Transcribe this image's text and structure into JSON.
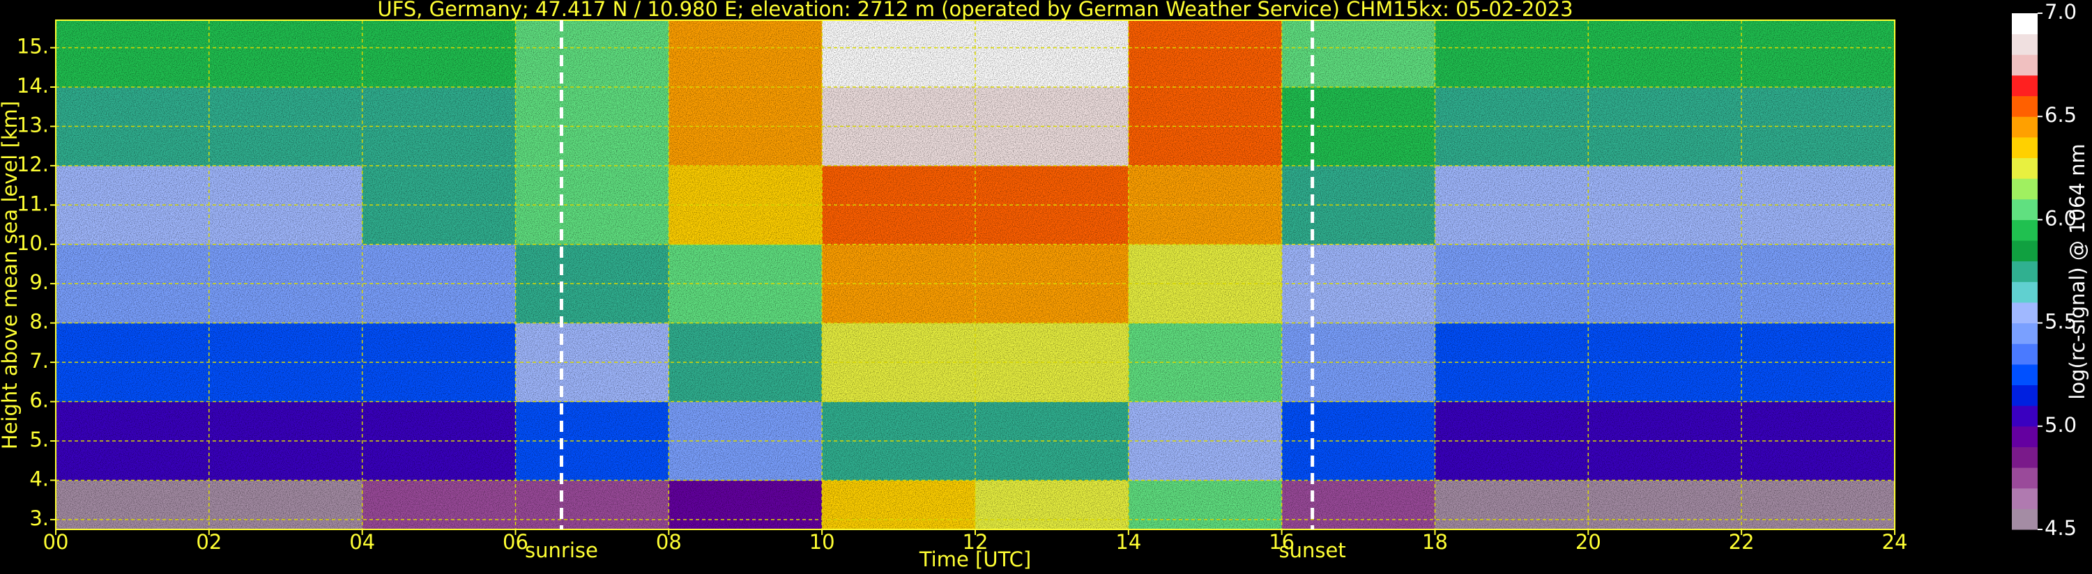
{
  "chart_data": {
    "type": "heatmap",
    "title": "UFS, Germany; 47.417 N / 10.980 E; elevation: 2712 m  (operated by German Weather Service)    CHM15kx: 05-02-2023",
    "x_label": "Time [UTC]",
    "y_label": "Height above mean sea level [km]",
    "colorbar_label": "log(rc-signal) @ 1064 nm",
    "xlim": [
      0,
      24
    ],
    "ylim": [
      2.75,
      15.7
    ],
    "xticks": [
      {
        "value": 0,
        "label": "00"
      },
      {
        "value": 2,
        "label": "02"
      },
      {
        "value": 4,
        "label": "04"
      },
      {
        "value": 6,
        "label": "06"
      },
      {
        "value": 8,
        "label": "08"
      },
      10,
      12,
      14,
      16,
      18,
      20,
      22,
      24
    ],
    "yticks": [
      {
        "value": 3,
        "label": "3."
      },
      {
        "value": 4,
        "label": "4."
      },
      {
        "value": 5,
        "label": "5."
      },
      {
        "value": 6,
        "label": "6."
      },
      {
        "value": 7,
        "label": "7."
      },
      {
        "value": 8,
        "label": "8."
      },
      {
        "value": 9,
        "label": "9."
      },
      {
        "value": 10,
        "label": "10."
      },
      {
        "value": 11,
        "label": "11."
      },
      {
        "value": 12,
        "label": "12."
      },
      {
        "value": 13,
        "label": "13."
      },
      {
        "value": 14,
        "label": "14."
      },
      {
        "value": 15,
        "label": "15."
      }
    ],
    "grid": true,
    "x_edges": [
      0,
      2,
      4,
      6,
      8,
      10,
      12,
      14,
      16,
      18,
      20,
      22,
      24
    ],
    "y_edges": [
      2.75,
      4,
      6,
      8,
      10,
      12,
      14,
      15.7
    ],
    "z": [
      [
        4.6,
        4.6,
        4.7,
        4.8,
        4.9,
        6.3,
        6.2,
        6.0,
        4.7,
        4.6,
        4.6,
        4.6
      ],
      [
        5.0,
        5.0,
        5.0,
        5.2,
        5.4,
        5.8,
        5.8,
        5.6,
        5.2,
        5.0,
        5.0,
        5.0
      ],
      [
        5.2,
        5.2,
        5.2,
        5.5,
        5.8,
        6.2,
        6.2,
        6.0,
        5.4,
        5.2,
        5.2,
        5.2
      ],
      [
        5.4,
        5.4,
        5.4,
        5.8,
        6.1,
        6.4,
        6.4,
        6.2,
        5.6,
        5.4,
        5.4,
        5.4
      ],
      [
        5.6,
        5.6,
        5.8,
        6.0,
        6.3,
        6.6,
        6.6,
        6.4,
        5.8,
        5.6,
        5.6,
        5.6
      ],
      [
        5.8,
        5.8,
        5.8,
        6.1,
        6.4,
        6.8,
        6.8,
        6.5,
        5.9,
        5.8,
        5.8,
        5.8
      ],
      [
        5.9,
        5.9,
        5.9,
        6.1,
        6.4,
        6.9,
        6.9,
        6.5,
        6.0,
        5.9,
        5.9,
        5.9
      ]
    ],
    "zlim": [
      4.5,
      7.0
    ],
    "zticks": [
      4.5,
      {
        "value": 5,
        "label": "5.0"
      },
      5.5,
      {
        "value": 6,
        "label": "6.0"
      },
      6.5,
      {
        "value": 7,
        "label": "7.0"
      }
    ],
    "colorscale": [
      "#a48ca4",
      "#b07ab0",
      "#9a4a9a",
      "#7a1a8a",
      "#6400a0",
      "#3a00c0",
      "#0020e0",
      "#0050ff",
      "#4a7aff",
      "#7aa0ff",
      "#a0b8ff",
      "#60d0d0",
      "#30b090",
      "#10a040",
      "#20c050",
      "#60e080",
      "#a0f060",
      "#e8f040",
      "#ffd000",
      "#ffa000",
      "#ff6000",
      "#ff2020",
      "#f0c0c0",
      "#f0e0e0",
      "#ffffff"
    ],
    "annotations": [
      {
        "x": 6.6,
        "text": "sunrise"
      },
      {
        "x": 16.4,
        "text": "sunset"
      }
    ]
  }
}
